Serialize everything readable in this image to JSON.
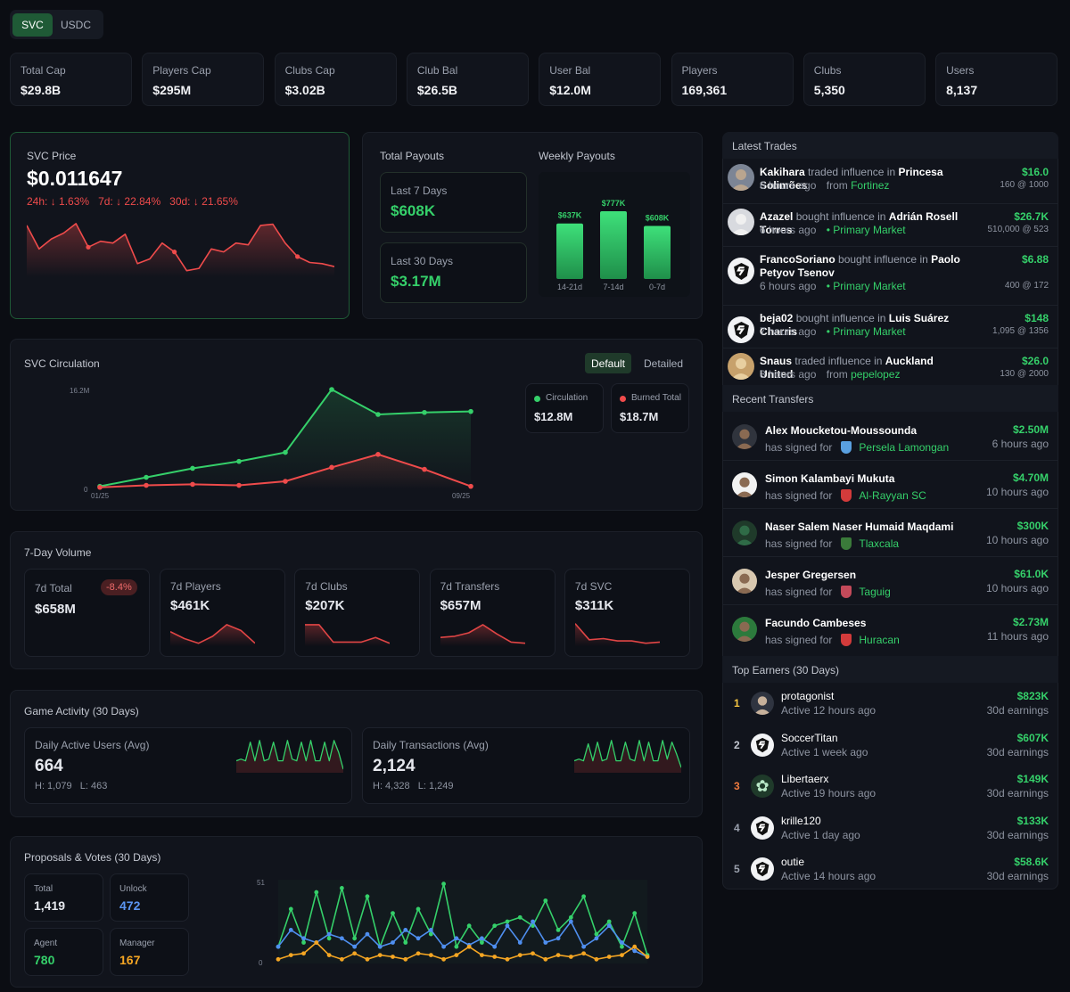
{
  "toggle": {
    "svc": "SVC",
    "usdc": "USDC"
  },
  "stats": [
    {
      "label": "Total Cap",
      "value": "$29.8B"
    },
    {
      "label": "Players Cap",
      "value": "$295M"
    },
    {
      "label": "Clubs Cap",
      "value": "$3.02B"
    },
    {
      "label": "Club Bal",
      "value": "$26.5B"
    },
    {
      "label": "User Bal",
      "value": "$12.0M"
    },
    {
      "label": "Players",
      "value": "169,361"
    },
    {
      "label": "Clubs",
      "value": "5,350"
    },
    {
      "label": "Users",
      "value": "8,137"
    }
  ],
  "price": {
    "title": "SVC Price",
    "value": "$0.011647",
    "change_24h": "24h: ↓ 1.63%",
    "change_7d": "7d: ↓ 22.84%",
    "change_30d": "30d: ↓ 21.65%",
    "series": [
      0.85,
      0.45,
      0.62,
      0.72,
      0.88,
      0.48,
      0.58,
      0.55,
      0.7,
      0.2,
      0.28,
      0.55,
      0.4,
      0.08,
      0.12,
      0.45,
      0.4,
      0.55,
      0.52,
      0.85,
      0.87,
      0.55,
      0.32,
      0.22,
      0.2,
      0.15
    ]
  },
  "payouts": {
    "title": "Total Payouts",
    "last7_label": "Last 7 Days",
    "last7_value": "$608K",
    "last30_label": "Last 30 Days",
    "last30_value": "$3.17M",
    "weekly_title": "Weekly Payouts",
    "bars": [
      {
        "label": "14-21d",
        "value_text": "$637K",
        "value": 637
      },
      {
        "label": "7-14d",
        "value_text": "$777K",
        "value": 777
      },
      {
        "label": "0-7d",
        "value_text": "$608K",
        "value": 608
      }
    ]
  },
  "circulation": {
    "title": "SVC Circulation",
    "tab_default": "Default",
    "tab_detailed": "Detailed",
    "y_max_label": "16.2M",
    "y_min_label": "0",
    "x_start": "01/25",
    "x_end": "09/25",
    "circ_label": "Circulation",
    "circ_value": "$12.8M",
    "burn_label": "Burned Total",
    "burn_value": "$18.7M",
    "circ_color": "#35d06a",
    "burn_color": "#ef4b4b",
    "circulation_series": [
      0.03,
      0.12,
      0.21,
      0.28,
      0.37,
      1.0,
      0.75,
      0.77,
      0.78
    ],
    "burned_series": [
      0.02,
      0.04,
      0.05,
      0.04,
      0.08,
      0.22,
      0.35,
      0.2,
      0.03
    ]
  },
  "volume": {
    "title": "7-Day Volume",
    "total_label": "7d Total",
    "total_value": "$658M",
    "total_change": "-8.4%",
    "cards": [
      {
        "label": "7d Players",
        "value": "$461K",
        "spark": [
          0.55,
          0.25,
          0.05,
          0.35,
          0.85,
          0.6,
          0.05
        ]
      },
      {
        "label": "7d Clubs",
        "value": "$207K",
        "spark": [
          0.85,
          0.85,
          0.1,
          0.1,
          0.1,
          0.3,
          0.05
        ]
      },
      {
        "label": "7d Transfers",
        "value": "$657M",
        "spark": [
          0.3,
          0.35,
          0.5,
          0.85,
          0.45,
          0.1,
          0.05
        ]
      },
      {
        "label": "7d SVC",
        "value": "$311K",
        "spark": [
          0.9,
          0.2,
          0.25,
          0.15,
          0.15,
          0.05,
          0.1
        ]
      }
    ]
  },
  "activity": {
    "title": "Game Activity (30 Days)",
    "dau_label": "Daily Active Users (Avg)",
    "dau_value": "664",
    "dau_high": "H: 1,079",
    "dau_low": "L: 463",
    "tx_label": "Daily Transactions (Avg)",
    "tx_value": "2,124",
    "tx_high": "H: 4,328",
    "tx_low": "L: 1,249",
    "dau_spark": [
      0.3,
      0.35,
      0.3,
      0.85,
      0.3,
      0.9,
      0.3,
      0.35,
      0.85,
      0.3,
      0.3,
      0.9,
      0.35,
      0.3,
      0.85,
      0.3,
      0.9,
      0.3,
      0.3,
      0.85,
      0.3,
      0.9,
      0.55,
      0.05
    ],
    "tx_spark": [
      0.3,
      0.35,
      0.3,
      0.8,
      0.3,
      0.85,
      0.3,
      0.35,
      0.9,
      0.3,
      0.3,
      0.85,
      0.35,
      0.3,
      0.9,
      0.3,
      0.85,
      0.3,
      0.3,
      0.9,
      0.35,
      0.85,
      0.5,
      0.1
    ]
  },
  "proposals": {
    "title": "Proposals & Votes (30 Days)",
    "total_label": "Total",
    "total_value": "1,419",
    "unlock_label": "Unlock",
    "unlock_value": "472",
    "agent_label": "Agent",
    "agent_value": "780",
    "manager_label": "Manager",
    "manager_value": "167",
    "y_max": "51",
    "y_min": "0",
    "green_series": [
      0.2,
      0.65,
      0.25,
      0.85,
      0.3,
      0.9,
      0.3,
      0.8,
      0.2,
      0.6,
      0.25,
      0.65,
      0.35,
      0.95,
      0.2,
      0.45,
      0.25,
      0.45,
      0.5,
      0.55,
      0.45,
      0.75,
      0.4,
      0.55,
      0.8,
      0.35,
      0.5,
      0.2,
      0.6,
      0.1
    ],
    "blue_series": [
      0.2,
      0.4,
      0.3,
      0.25,
      0.35,
      0.3,
      0.2,
      0.35,
      0.2,
      0.25,
      0.4,
      0.3,
      0.4,
      0.2,
      0.3,
      0.22,
      0.3,
      0.2,
      0.45,
      0.25,
      0.5,
      0.25,
      0.3,
      0.5,
      0.2,
      0.3,
      0.45,
      0.25,
      0.15,
      0.08
    ],
    "orange_series": [
      0.05,
      0.1,
      0.12,
      0.25,
      0.1,
      0.05,
      0.12,
      0.05,
      0.1,
      0.08,
      0.05,
      0.12,
      0.1,
      0.05,
      0.1,
      0.2,
      0.1,
      0.08,
      0.05,
      0.1,
      0.12,
      0.05,
      0.1,
      0.08,
      0.12,
      0.05,
      0.08,
      0.1,
      0.2,
      0.08
    ],
    "green_color": "#35d06a",
    "blue_color": "#4f8ff0",
    "orange_color": "#f5a623"
  },
  "trades": {
    "title": "Latest Trades",
    "items": [
      {
        "user": "Kakihara",
        "verb": "traded influence in",
        "target": "Princesa Solimões",
        "time": "6 hours ago",
        "src_prefix": "from",
        "src": "Fortinez",
        "amount": "$16.0",
        "detail": "160 @ 1000"
      },
      {
        "user": "Azazel",
        "verb": "bought influence in",
        "target": "Adrián Rosell Torres",
        "time": "6 hours ago",
        "src_prefix": "•",
        "src": "Primary Market",
        "amount": "$26.7K",
        "detail": "510,000 @ 523"
      },
      {
        "user": "FrancoSoriano",
        "verb": "bought influence in",
        "target": "Paolo Petyov Tsenov",
        "time": "6 hours ago",
        "src_prefix": "•",
        "src": "Primary Market",
        "amount": "$6.88",
        "detail": "400 @ 172"
      },
      {
        "user": "beja02",
        "verb": "bought influence in",
        "target": "Luis Suárez Charris",
        "time": "7 hours ago",
        "src_prefix": "•",
        "src": "Primary Market",
        "amount": "$148",
        "detail": "1,095 @ 1356"
      },
      {
        "user": "Snaus",
        "verb": "traded influence in",
        "target": "Auckland United",
        "time": "8 hours ago",
        "src_prefix": "from",
        "src": "pepelopez",
        "amount": "$26.0",
        "detail": "130 @ 2000"
      }
    ]
  },
  "transfers": {
    "title": "Recent Transfers",
    "signed_label": "has signed for",
    "items": [
      {
        "name": "Alex Moucketou-Moussounda",
        "club": "Persela Lamongan",
        "amount": "$2.50M",
        "time": "6 hours ago"
      },
      {
        "name": "Simon Kalambayi Mukuta",
        "club": "Al-Rayyan SC",
        "amount": "$4.70M",
        "time": "10 hours ago"
      },
      {
        "name": "Naser Salem Naser Humaid Maqdami",
        "club": "Tlaxcala",
        "amount": "$300K",
        "time": "10 hours ago"
      },
      {
        "name": "Jesper Gregersen",
        "club": "Taguig",
        "amount": "$61.0K",
        "time": "10 hours ago"
      },
      {
        "name": "Facundo Cambeses",
        "club": "Huracan",
        "amount": "$2.73M",
        "time": "11 hours ago"
      }
    ]
  },
  "earners": {
    "title": "Top Earners (30 Days)",
    "earn_label": "30d earnings",
    "items": [
      {
        "rank": "1",
        "name": "protagonist",
        "active": "Active 12 hours ago",
        "amount": "$823K"
      },
      {
        "rank": "2",
        "name": "SoccerTitan",
        "active": "Active 1 week ago",
        "amount": "$607K"
      },
      {
        "rank": "3",
        "name": "Libertaerx",
        "active": "Active 19 hours ago",
        "amount": "$149K"
      },
      {
        "rank": "4",
        "name": "krille120",
        "active": "Active 1 day ago",
        "amount": "$133K"
      },
      {
        "rank": "5",
        "name": "outie",
        "active": "Active 14 hours ago",
        "amount": "$58.6K"
      }
    ]
  }
}
